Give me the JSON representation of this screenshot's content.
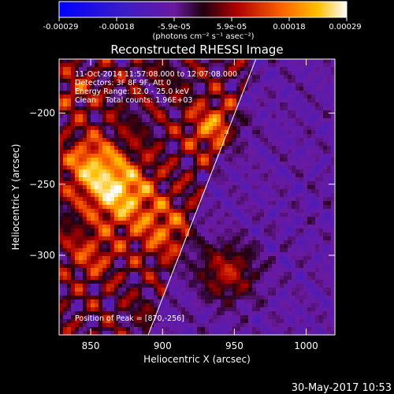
{
  "chart_data": {
    "type": "heatmap",
    "title": "Reconstructed RHESSI Image",
    "xlabel": "Heliocentric X (arcsec)",
    "ylabel": "Heliocentric Y (arcsec)",
    "xlim": [
      828,
      1020
    ],
    "ylim": [
      -356,
      -162
    ],
    "xticks": [
      850,
      900,
      950,
      1000
    ],
    "yticks": [
      -200,
      -250,
      -300
    ],
    "colorbar": {
      "ticks": [
        "-0.00029",
        "-0.00018",
        "-5.9e-05",
        "5.9e-05",
        "0.00018",
        "0.00029"
      ],
      "unit_label": "(photons cm⁻² s⁻¹ asec⁻²)",
      "range": [
        -0.00029,
        0.00029
      ]
    },
    "annotations": [
      "11-Oct-2014 11:57:08.000 to 12:07:08.000",
      "Detectors: 3F 8F 9F, Att 0",
      "Energy Range: 12.0 - 25.0 keV",
      "Clean    Total counts: 1.96E+03",
      "Position of Peak = [870,-256]"
    ],
    "peak": {
      "x": 870,
      "y": -256
    },
    "limb": {
      "x1": 890,
      "y1": -356,
      "x2": 965,
      "y2": -162
    }
  },
  "timestamp": "30-May-2017 10:53"
}
